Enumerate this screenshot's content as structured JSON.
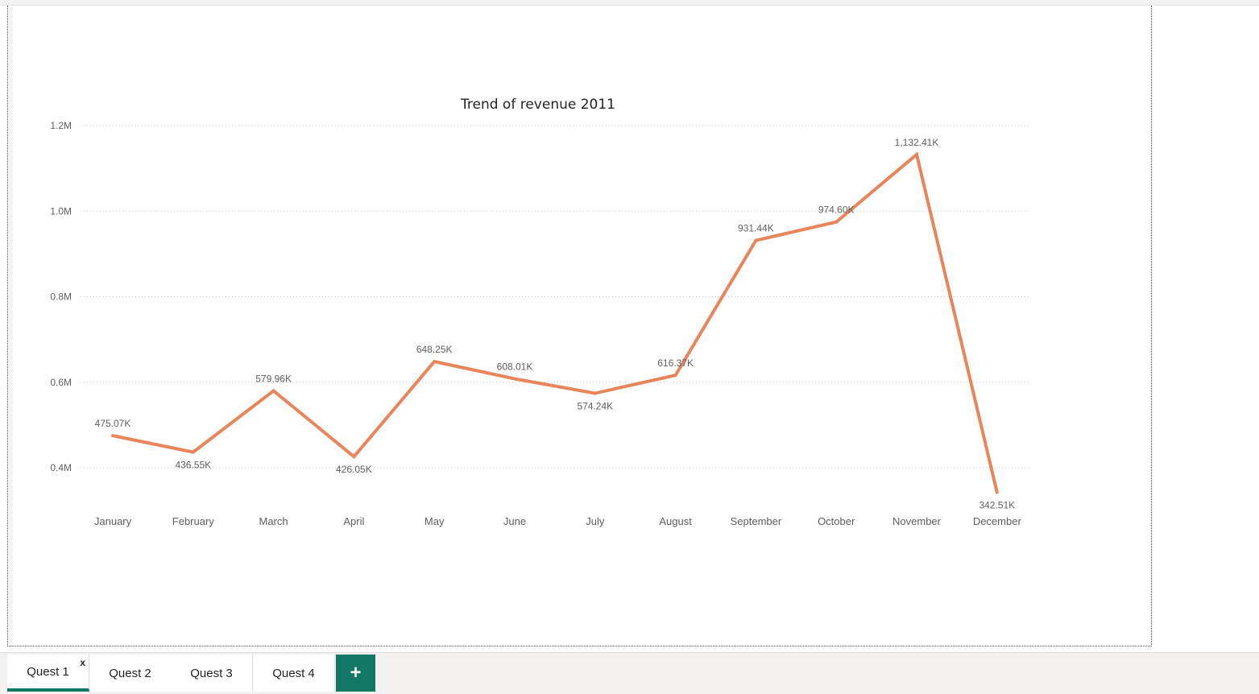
{
  "colors": {
    "line": "#E8855B",
    "accent": "#117865"
  },
  "chart_data": {
    "type": "line",
    "title": "Trend of revenue 2011",
    "xlabel": "",
    "ylabel": "",
    "categories": [
      "January",
      "February",
      "March",
      "April",
      "May",
      "June",
      "July",
      "August",
      "September",
      "October",
      "November",
      "December"
    ],
    "values": [
      475070,
      436550,
      579960,
      426050,
      648250,
      608010,
      574240,
      616370,
      931440,
      974600,
      1132410,
      342510
    ],
    "data_labels": [
      "475.07K",
      "436.55K",
      "579.96K",
      "426.05K",
      "648.25K",
      "608.01K",
      "574.24K",
      "616.37K",
      "931.44K",
      "974.60K",
      "1,132.41K",
      "342.51K"
    ],
    "ylim": [
      0.3,
      1.2
    ],
    "yticks": [
      {
        "value": 1200000,
        "label": "1.2M"
      },
      {
        "value": 1000000,
        "label": "1.0M"
      },
      {
        "value": 800000,
        "label": "0.8M"
      },
      {
        "value": 600000,
        "label": "0.6M"
      },
      {
        "value": 400000,
        "label": "0.4M"
      }
    ],
    "grid": true,
    "legend": "none"
  },
  "tabs": {
    "items": [
      {
        "label": "Quest 1",
        "close": "x"
      },
      {
        "label": "Quest 2"
      },
      {
        "label": "Quest 3"
      },
      {
        "label": "Quest 4"
      }
    ],
    "add_icon": "plus-icon",
    "add_label": "+"
  }
}
